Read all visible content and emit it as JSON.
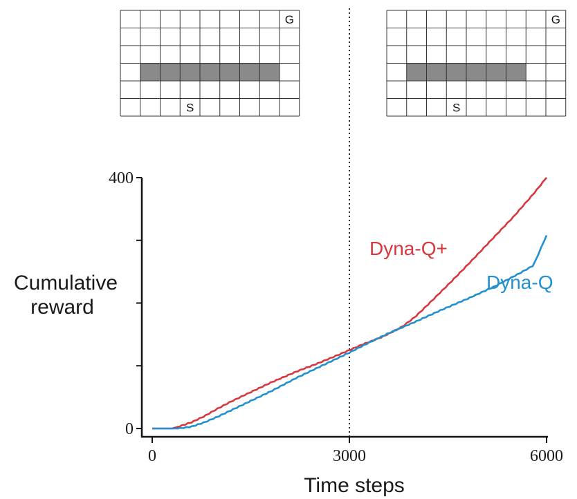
{
  "chart_data": {
    "type": "line",
    "xlabel": "Time steps",
    "ylabel_lines": [
      "Cumulative",
      "reward"
    ],
    "xlim": [
      0,
      6000
    ],
    "ylim": [
      0,
      400
    ],
    "x_ticks": [
      0,
      3000,
      6000
    ],
    "x_tick_labels": [
      "0",
      "3000",
      "6000"
    ],
    "y_ticks": [
      0,
      100,
      200,
      300,
      400
    ],
    "y_tick_labels": [
      "0",
      "",
      "",
      "",
      "400"
    ],
    "grid": false,
    "vline": {
      "x": 3000,
      "style": "dotted"
    },
    "series": [
      {
        "name": "Dyna-Q+",
        "color": "#d7373e",
        "x": [
          0,
          300,
          400,
          600,
          800,
          1000,
          1200,
          1500,
          1800,
          2000,
          2200,
          2500,
          2800,
          3000,
          3200,
          3500,
          3800,
          4000,
          4200,
          4500,
          4800,
          5000,
          5200,
          5500,
          5800,
          6000
        ],
        "y": [
          0,
          0,
          3,
          10,
          20,
          32,
          43,
          58,
          73,
          82,
          91,
          103,
          116,
          125,
          134,
          146,
          162,
          178,
          198,
          229,
          261,
          283,
          305,
          338,
          374,
          400
        ]
      },
      {
        "name": "Dyna-Q",
        "color": "#2290cf",
        "x": [
          0,
          300,
          400,
          600,
          800,
          1000,
          1200,
          1500,
          1800,
          2000,
          2200,
          2500,
          2800,
          3000,
          3300,
          3600,
          4000,
          4400,
          4800,
          5200,
          5600,
          5800,
          6000
        ],
        "y": [
          0,
          0,
          0,
          3,
          10,
          19,
          29,
          44,
          59,
          70,
          81,
          96,
          111,
          121,
          137,
          152,
          170,
          189,
          207,
          226,
          248,
          260,
          308
        ]
      }
    ],
    "mazes": [
      {
        "phase": "before",
        "rows": 6,
        "cols": 9,
        "wall": {
          "row": 3,
          "col_start": 1,
          "col_end": 8
        },
        "goal_label": "G",
        "goal_cell": {
          "row": 0,
          "col": 8
        },
        "start_label": "S",
        "start_cell": {
          "row": 5,
          "col": 3
        }
      },
      {
        "phase": "after",
        "rows": 6,
        "cols": 9,
        "wall": {
          "row": 3,
          "col_start": 1,
          "col_end": 7
        },
        "goal_label": "G",
        "goal_cell": {
          "row": 0,
          "col": 8
        },
        "start_label": "S",
        "start_cell": {
          "row": 5,
          "col": 3
        }
      }
    ]
  }
}
